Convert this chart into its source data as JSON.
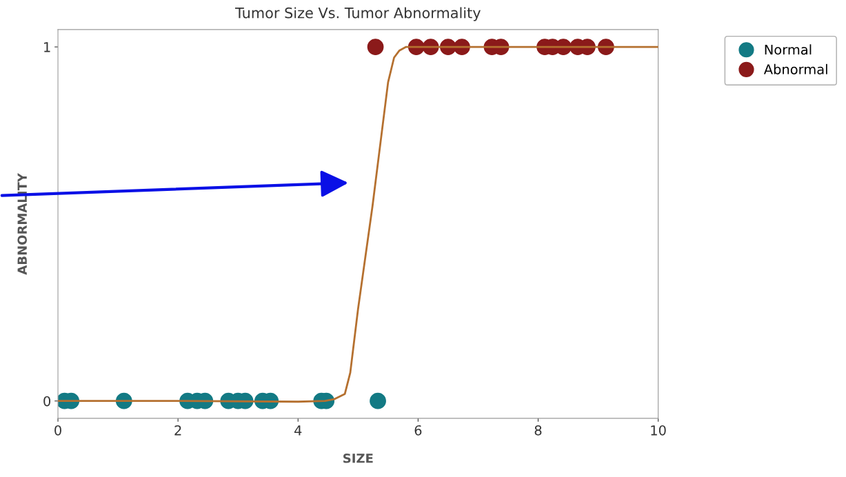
{
  "chart_data": {
    "type": "scatter",
    "title": "Tumor Size Vs. Tumor Abnormality",
    "xlabel": "SIZE",
    "ylabel": "ABNORMALITY",
    "xlim": [
      0,
      10
    ],
    "ylim": [
      -0.049,
      1.049
    ],
    "xticks": [
      0,
      2,
      4,
      6,
      8,
      10
    ],
    "yticks": [
      0,
      1
    ],
    "grid": false,
    "legend": "top right",
    "marker": "circle",
    "series": [
      {
        "name": "Normal",
        "color": "#137a84",
        "x": [
          0.11,
          0.22,
          1.1,
          2.16,
          2.32,
          2.45,
          2.84,
          3.0,
          3.12,
          3.41,
          3.54,
          4.39,
          4.47,
          5.33
        ],
        "values": [
          0,
          0,
          0,
          0,
          0,
          0,
          0,
          0,
          0,
          0,
          0,
          0,
          0,
          0
        ]
      },
      {
        "name": "Abnormal",
        "color": "#8b1a1a",
        "x": [
          5.29,
          5.97,
          6.21,
          6.5,
          6.73,
          7.23,
          7.38,
          8.11,
          8.24,
          8.42,
          8.66,
          8.82,
          9.13
        ],
        "values": [
          1,
          1,
          1,
          1,
          1,
          1,
          1,
          1,
          1,
          1,
          1,
          1,
          1
        ]
      },
      {
        "type": "line",
        "color": "#b5702f",
        "marker": "none",
        "x": [
          0,
          2,
          4,
          4.45,
          4.6,
          4.78,
          4.87,
          5.0,
          5.24,
          5.5,
          5.6,
          5.69,
          5.8,
          6,
          9.4,
          10
        ],
        "values": [
          0,
          0,
          -0.002,
          0,
          0.005,
          0.02,
          0.08,
          0.26,
          0.55,
          0.9,
          0.97,
          0.99,
          1.0,
          1.0,
          1.0,
          1.0
        ]
      }
    ]
  }
}
